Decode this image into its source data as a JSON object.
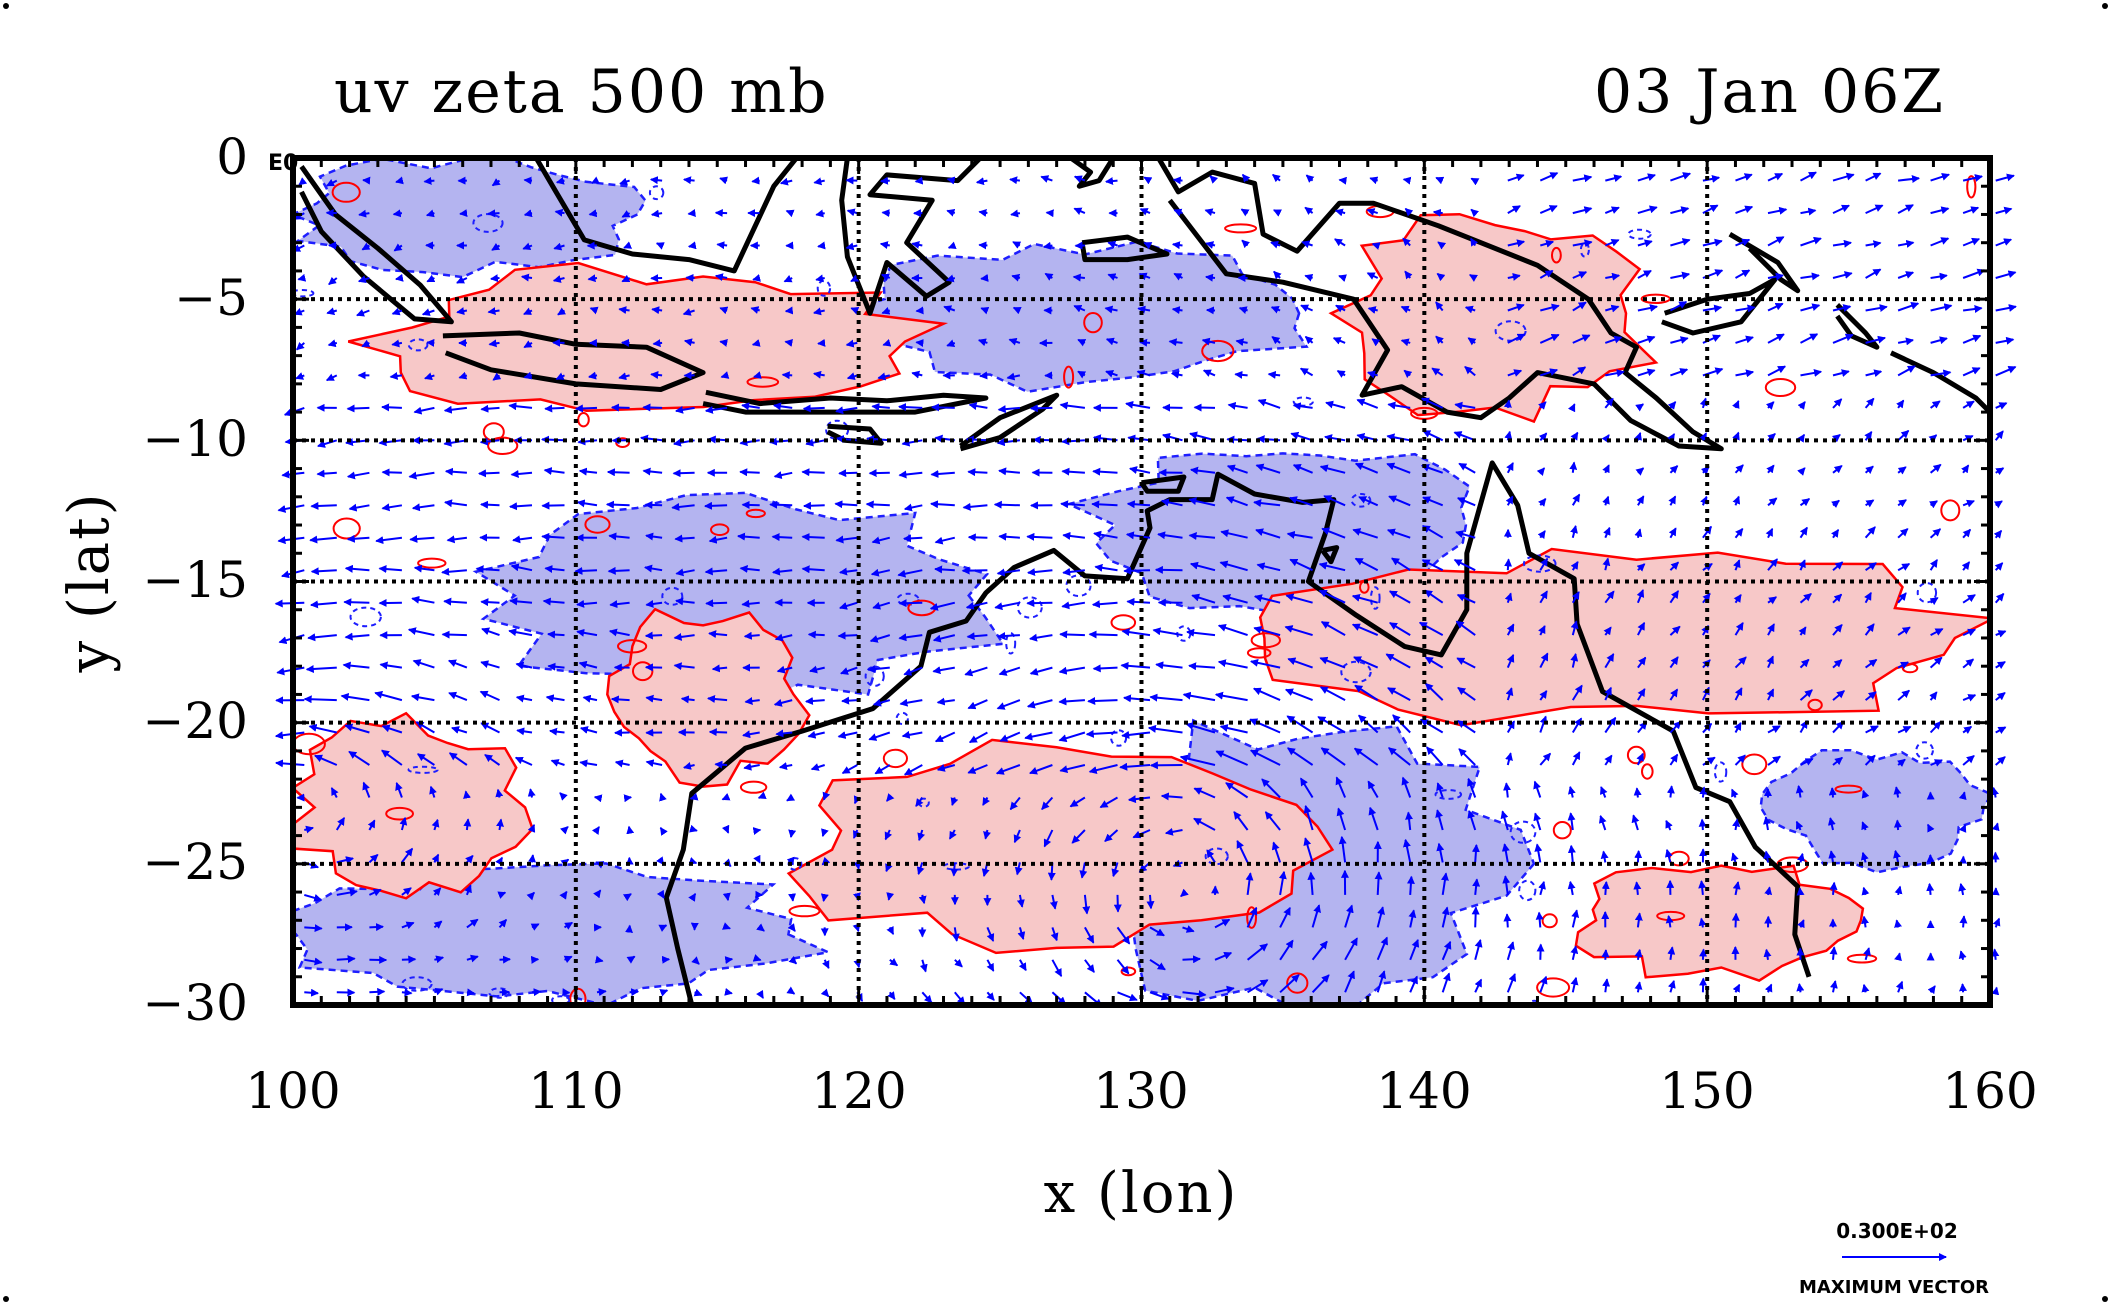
{
  "title_left": "uv zeta 500 mb",
  "title_right": "03 Jan 06Z",
  "corner_label": "E0",
  "axes": {
    "xlabel": "x (lon)",
    "ylabel": "y (lat)",
    "xlim": [
      100,
      160
    ],
    "ylim": [
      -30,
      0
    ],
    "xticks": [
      100,
      110,
      120,
      130,
      140,
      150,
      160
    ],
    "yticks": [
      0,
      -5,
      -10,
      -15,
      -20,
      -25,
      -30
    ],
    "xtick_labels": [
      "100",
      "110",
      "120",
      "130",
      "140",
      "150",
      "160"
    ],
    "ytick_labels": [
      "0",
      "−5",
      "−10",
      "−15",
      "−20",
      "−25",
      "−30"
    ],
    "grid": true
  },
  "legend": {
    "max_vector_value": "0.300E+02",
    "max_vector_label": "MAXIMUM VECTOR"
  },
  "colors": {
    "positive_fill": "#f7c8c8",
    "positive_contour": "#ff0000",
    "negative_fill": "#b4b4f0",
    "negative_contour": "#1e1eff",
    "vector": "#0000ff",
    "coast": "#000000"
  },
  "chart_data": {
    "type": "map",
    "fields": [
      "wind vectors (u, v)",
      "relative vorticity (zeta)"
    ],
    "level": "500 mb",
    "region": {
      "lon": [
        100,
        160
      ],
      "lat": [
        -30,
        0
      ]
    },
    "positive_zeta_regions": [
      {
        "lon": [
          103,
          122
        ],
        "lat": [
          -9,
          -4
        ]
      },
      {
        "lon": [
          100,
          108
        ],
        "lat": [
          -26,
          -20
        ]
      },
      {
        "lon": [
          111,
          118
        ],
        "lat": [
          -22,
          -16
        ]
      },
      {
        "lon": [
          118,
          136
        ],
        "lat": [
          -28,
          -21
        ]
      },
      {
        "lon": [
          135,
          160
        ],
        "lat": [
          -20,
          -14
        ]
      },
      {
        "lon": [
          137,
          148
        ],
        "lat": [
          -9,
          -2
        ]
      },
      {
        "lon": [
          145,
          156
        ],
        "lat": [
          -29,
          -25
        ]
      }
    ],
    "negative_zeta_regions": [
      {
        "lon": [
          100,
          112
        ],
        "lat": [
          -4,
          0
        ]
      },
      {
        "lon": [
          120,
          136
        ],
        "lat": [
          -8,
          -3
        ]
      },
      {
        "lon": [
          100,
          118
        ],
        "lat": [
          -30,
          -25
        ]
      },
      {
        "lon": [
          128,
          143
        ],
        "lat": [
          -30,
          -20
        ]
      },
      {
        "lon": [
          152,
          160
        ],
        "lat": [
          -25,
          -21
        ]
      },
      {
        "lon": [
          128,
          142
        ],
        "lat": [
          -16,
          -10
        ]
      },
      {
        "lon": [
          107,
          125
        ],
        "lat": [
          -19,
          -12
        ]
      }
    ],
    "coastlines": [
      {
        "name": "Sumatra",
        "points": [
          [
            100.3,
            -0.3
          ],
          [
            101.5,
            -2
          ],
          [
            103,
            -3.2
          ],
          [
            104.5,
            -4.5
          ],
          [
            105.6,
            -5.8
          ],
          [
            104.3,
            -5.7
          ],
          [
            102.5,
            -4.2
          ],
          [
            101,
            -2.6
          ],
          [
            100.3,
            -1.2
          ]
        ]
      },
      {
        "name": "Java",
        "points": [
          [
            105.3,
            -6.3
          ],
          [
            108,
            -6.2
          ],
          [
            110,
            -6.6
          ],
          [
            112.5,
            -6.7
          ],
          [
            114.5,
            -7.6
          ],
          [
            113,
            -8.2
          ],
          [
            110,
            -8
          ],
          [
            107,
            -7.5
          ],
          [
            105.4,
            -6.9
          ]
        ]
      },
      {
        "name": "Borneo",
        "points": [
          [
            108.6,
            0
          ],
          [
            109.3,
            -1.2
          ],
          [
            110.3,
            -2.9
          ],
          [
            112,
            -3.4
          ],
          [
            114,
            -3.6
          ],
          [
            115.6,
            -4
          ],
          [
            116.3,
            -2.5
          ],
          [
            117,
            -1
          ],
          [
            117.8,
            0
          ]
        ]
      },
      {
        "name": "Sulawesi",
        "points": [
          [
            119.6,
            0
          ],
          [
            119.4,
            -1.5
          ],
          [
            119.6,
            -3.5
          ],
          [
            120.4,
            -5.5
          ],
          [
            121,
            -3.7
          ],
          [
            122.4,
            -4.9
          ],
          [
            123.2,
            -4.4
          ],
          [
            121.7,
            -3
          ],
          [
            122.6,
            -1.5
          ],
          [
            120.4,
            -1.3
          ],
          [
            121,
            -0.6
          ],
          [
            123.5,
            -0.8
          ],
          [
            124.3,
            0
          ]
        ]
      },
      {
        "name": "Lesser Sundas",
        "points": [
          [
            114.6,
            -8.3
          ],
          [
            116.5,
            -8.7
          ],
          [
            119,
            -8.5
          ],
          [
            121,
            -8.6
          ],
          [
            123,
            -8.4
          ],
          [
            124.5,
            -8.5
          ],
          [
            122,
            -9
          ],
          [
            119,
            -9
          ],
          [
            116,
            -9
          ],
          [
            114.5,
            -8.7
          ]
        ]
      },
      {
        "name": "Timor",
        "points": [
          [
            123.6,
            -10.2
          ],
          [
            125,
            -9.2
          ],
          [
            127,
            -8.4
          ],
          [
            126.5,
            -8.9
          ],
          [
            125,
            -9.9
          ],
          [
            123.6,
            -10.3
          ]
        ]
      },
      {
        "name": "Sumba",
        "points": [
          [
            118.9,
            -9.5
          ],
          [
            120.4,
            -9.6
          ],
          [
            120.8,
            -10.1
          ],
          [
            119.5,
            -10
          ],
          [
            118.9,
            -9.7
          ]
        ]
      },
      {
        "name": "Seram",
        "points": [
          [
            127.9,
            -3
          ],
          [
            129.5,
            -2.8
          ],
          [
            130.9,
            -3.4
          ],
          [
            129.5,
            -3.6
          ],
          [
            128,
            -3.6
          ],
          [
            127.9,
            -3
          ]
        ]
      },
      {
        "name": "Halmahera",
        "points": [
          [
            127.5,
            0
          ],
          [
            128.2,
            -0.5
          ],
          [
            127.8,
            -1
          ],
          [
            128.5,
            -0.8
          ],
          [
            129,
            0
          ]
        ]
      },
      {
        "name": "New Guinea",
        "points": [
          [
            130.6,
            0
          ],
          [
            131.3,
            -1.2
          ],
          [
            132.5,
            -0.5
          ],
          [
            134,
            -0.9
          ],
          [
            134.3,
            -2.7
          ],
          [
            135.5,
            -3.3
          ],
          [
            137,
            -1.6
          ],
          [
            138.2,
            -1.6
          ],
          [
            140.5,
            -2.4
          ],
          [
            142,
            -3
          ],
          [
            144,
            -3.8
          ],
          [
            145.8,
            -5
          ],
          [
            146.6,
            -6.2
          ],
          [
            147.5,
            -6.7
          ],
          [
            147.1,
            -7.6
          ],
          [
            148.2,
            -8.5
          ],
          [
            149.5,
            -9.7
          ],
          [
            150.5,
            -10.3
          ],
          [
            149,
            -10.2
          ],
          [
            147.3,
            -9.3
          ],
          [
            146,
            -8
          ],
          [
            144,
            -7.6
          ],
          [
            143,
            -8.5
          ],
          [
            142,
            -9.2
          ],
          [
            140.8,
            -9
          ],
          [
            139.2,
            -8.1
          ],
          [
            137.8,
            -8.4
          ],
          [
            138.7,
            -6.8
          ],
          [
            137.5,
            -5
          ],
          [
            135,
            -4.4
          ],
          [
            133,
            -4.1
          ],
          [
            132,
            -2.8
          ],
          [
            131,
            -1.5
          ]
        ]
      },
      {
        "name": "New Britain",
        "points": [
          [
            148.5,
            -5.5
          ],
          [
            150,
            -5
          ],
          [
            151.5,
            -4.8
          ],
          [
            152.4,
            -4.3
          ],
          [
            151.2,
            -5.8
          ],
          [
            149.5,
            -6.2
          ],
          [
            148.4,
            -5.8
          ]
        ]
      },
      {
        "name": "New Ireland",
        "points": [
          [
            150.8,
            -2.7
          ],
          [
            152.5,
            -3.7
          ],
          [
            153.2,
            -4.7
          ],
          [
            152.6,
            -4.3
          ],
          [
            151.5,
            -3.2
          ]
        ]
      },
      {
        "name": "Bougainville",
        "points": [
          [
            154.6,
            -5.2
          ],
          [
            155.6,
            -6.2
          ],
          [
            156,
            -6.7
          ],
          [
            155.1,
            -6.3
          ],
          [
            154.6,
            -5.6
          ]
        ]
      },
      {
        "name": "Solomon Is",
        "points": [
          [
            156.5,
            -6.9
          ],
          [
            158,
            -7.6
          ],
          [
            159.5,
            -8.5
          ],
          [
            160,
            -9
          ]
        ]
      },
      {
        "name": "Australia",
        "points": [
          [
            114.1,
            -30
          ],
          [
            113.6,
            -28
          ],
          [
            113.2,
            -26.2
          ],
          [
            113.8,
            -24.5
          ],
          [
            114.1,
            -22.5
          ],
          [
            116,
            -20.9
          ],
          [
            118,
            -20.3
          ],
          [
            120.5,
            -19.5
          ],
          [
            122.2,
            -18
          ],
          [
            122.5,
            -16.8
          ],
          [
            123.8,
            -16.4
          ],
          [
            124.5,
            -15.4
          ],
          [
            125.5,
            -14.5
          ],
          [
            126.9,
            -13.9
          ],
          [
            128,
            -14.8
          ],
          [
            129.5,
            -14.9
          ],
          [
            130.3,
            -13.1
          ],
          [
            130.2,
            -12.5
          ],
          [
            131,
            -12.1
          ],
          [
            132.5,
            -12.1
          ],
          [
            132.7,
            -11.2
          ],
          [
            134,
            -11.9
          ],
          [
            135.7,
            -12.2
          ],
          [
            136.8,
            -12.1
          ],
          [
            136.5,
            -13.3
          ],
          [
            135.9,
            -15
          ],
          [
            137.6,
            -16.2
          ],
          [
            139.3,
            -17.3
          ],
          [
            140.6,
            -17.6
          ],
          [
            141.5,
            -16
          ],
          [
            141.5,
            -14
          ],
          [
            142.4,
            -10.8
          ],
          [
            143.3,
            -12.3
          ],
          [
            143.7,
            -14
          ],
          [
            145.3,
            -14.9
          ],
          [
            145.4,
            -16.5
          ],
          [
            146.3,
            -18.9
          ],
          [
            148.8,
            -20.3
          ],
          [
            149.6,
            -22.3
          ],
          [
            150.8,
            -22.8
          ],
          [
            151.7,
            -24.4
          ],
          [
            153.2,
            -25.8
          ],
          [
            153.1,
            -27.5
          ],
          [
            153.6,
            -29
          ]
        ]
      },
      {
        "name": "Melville Is",
        "points": [
          [
            130,
            -11.5
          ],
          [
            131.5,
            -11.3
          ],
          [
            131.3,
            -11.8
          ],
          [
            130.2,
            -11.8
          ],
          [
            130,
            -11.5
          ]
        ]
      },
      {
        "name": "Groote Eylandt",
        "points": [
          [
            136.4,
            -13.9
          ],
          [
            136.9,
            -13.8
          ],
          [
            136.7,
            -14.3
          ],
          [
            136.4,
            -13.9
          ]
        ]
      }
    ]
  }
}
